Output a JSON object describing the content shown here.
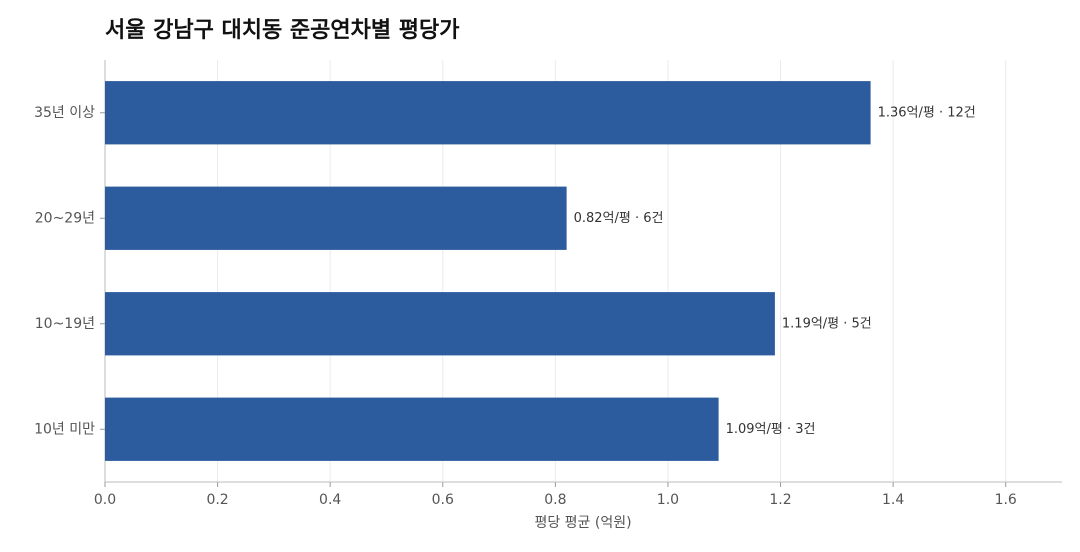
{
  "chart_data": {
    "type": "hbar",
    "title": "서울 강남구 대치동 준공연차별 평당가",
    "x_label": "평당 평균 (억원)",
    "categories": [
      "35년 이상",
      "20~29년",
      "10~19년",
      "10년 미만"
    ],
    "values": [
      1.36,
      0.82,
      1.19,
      1.09
    ],
    "value_labels": [
      "1.36억/평 · 12건",
      "0.82억/평 · 6건",
      "1.19억/평 · 5건",
      "1.09억/평 · 3건"
    ],
    "color": "#2c5b9e",
    "xlim": [
      0,
      1.7
    ],
    "xticks": [
      {
        "value": 0,
        "label": "0.0"
      },
      0.2,
      0.4,
      0.6,
      0.8,
      {
        "value": 1,
        "label": "1.0"
      },
      1.2,
      1.4,
      1.6
    ],
    "grid": true
  }
}
